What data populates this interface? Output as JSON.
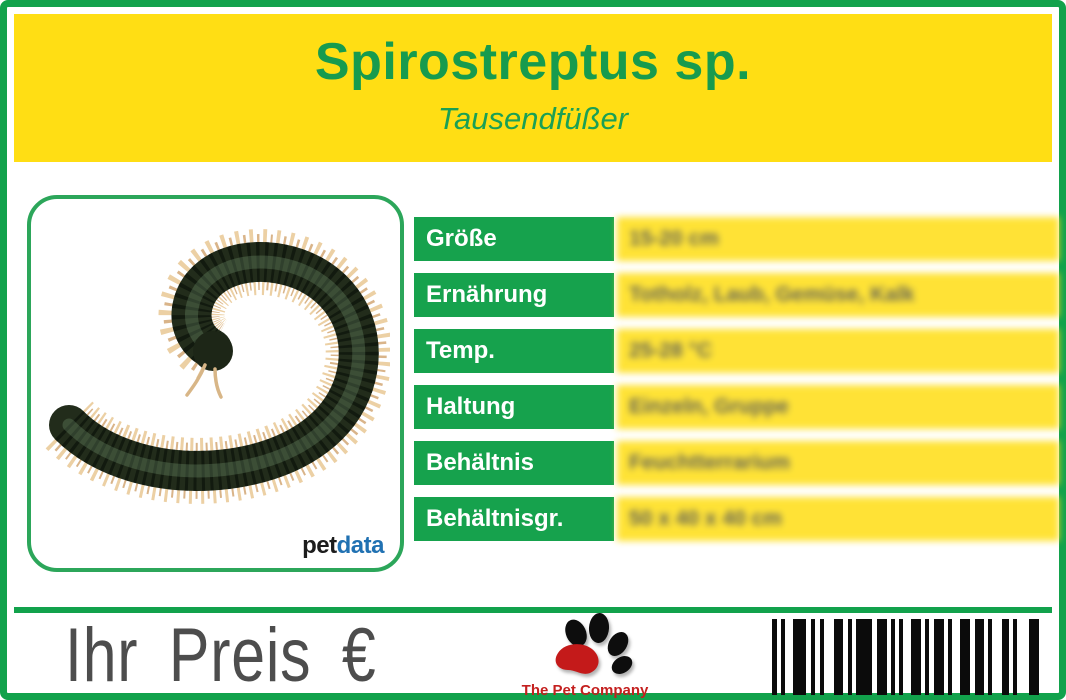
{
  "header": {
    "title": "Spirostreptus sp.",
    "subtitle": "Tausendfüßer"
  },
  "photo": {
    "subject": "millipede-curled-photo",
    "brand_pet": "pet",
    "brand_data": "data"
  },
  "table": {
    "rows": [
      {
        "label": "Größe",
        "value": "15-20 cm"
      },
      {
        "label": "Ernährung",
        "value": "Totholz, Laub, Gemüse, Kalk"
      },
      {
        "label": "Temp.",
        "value": "25-28 °C"
      },
      {
        "label": "Haltung",
        "value": "Einzeln, Gruppe"
      },
      {
        "label": "Behältnis",
        "value": "Feuchtterrarium"
      },
      {
        "label": "Behältnisgr.",
        "value": "50 x 40 x 40 cm"
      }
    ]
  },
  "footer": {
    "price_label": "Ihr Preis €",
    "company": "The Pet Company",
    "barcode": [
      [
        5,
        4
      ],
      [
        4,
        8
      ],
      [
        13,
        5
      ],
      [
        4,
        5
      ],
      [
        4,
        10
      ],
      [
        9,
        5
      ],
      [
        4,
        4
      ],
      [
        16,
        5
      ],
      [
        10,
        4
      ],
      [
        4,
        4
      ],
      [
        4,
        8
      ],
      [
        10,
        4
      ],
      [
        4,
        5
      ],
      [
        10,
        4
      ],
      [
        4,
        8
      ],
      [
        10,
        5
      ],
      [
        9,
        4
      ],
      [
        4,
        10
      ],
      [
        7,
        4
      ],
      [
        4,
        12
      ],
      [
        12,
        4
      ],
      [
        7,
        0
      ]
    ]
  },
  "colors": {
    "accent_green": "#12A24C",
    "band_yellow": "#FFDE14",
    "title_green": "#179B4E",
    "price_gray": "#4D4D4D",
    "brand_blue": "#2071B2",
    "company_red": "#C4201F"
  }
}
